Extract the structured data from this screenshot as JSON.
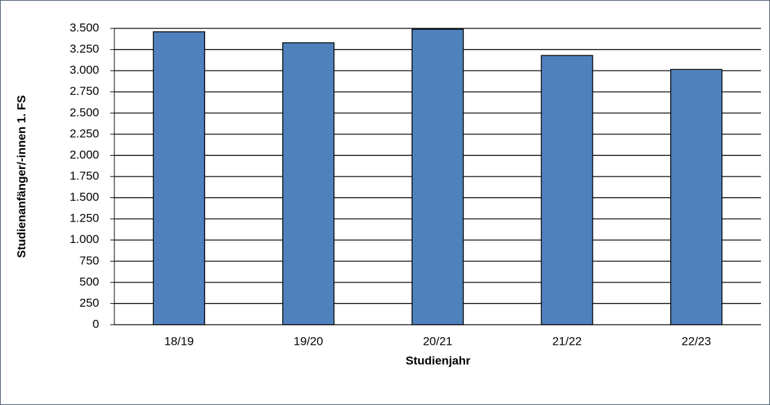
{
  "chart_data": {
    "type": "bar",
    "x_label": "Studienjahr",
    "y_label": "Studienanfänger/-innen 1. FS",
    "categories": [
      "18/19",
      "19/20",
      "20/21",
      "21/22",
      "22/23"
    ],
    "values": [
      3460,
      3330,
      3490,
      3180,
      3015
    ],
    "color": "#4f81bd",
    "ylim": [
      0,
      3500
    ],
    "yticks": [
      0,
      250,
      500,
      750,
      {
        "value": 1000,
        "label": "1.000"
      },
      {
        "value": 1250,
        "label": "1.250"
      },
      {
        "value": 1500,
        "label": "1.500"
      },
      {
        "value": 1750,
        "label": "1.750"
      },
      {
        "value": 2000,
        "label": "2.000"
      },
      {
        "value": 2250,
        "label": "2.250"
      },
      {
        "value": 2500,
        "label": "2.500"
      },
      {
        "value": 2750,
        "label": "2.750"
      },
      {
        "value": 3000,
        "label": "3.000"
      },
      {
        "value": 3250,
        "label": "3.250"
      },
      {
        "value": 3500,
        "label": "3.500"
      }
    ],
    "grid": true
  }
}
